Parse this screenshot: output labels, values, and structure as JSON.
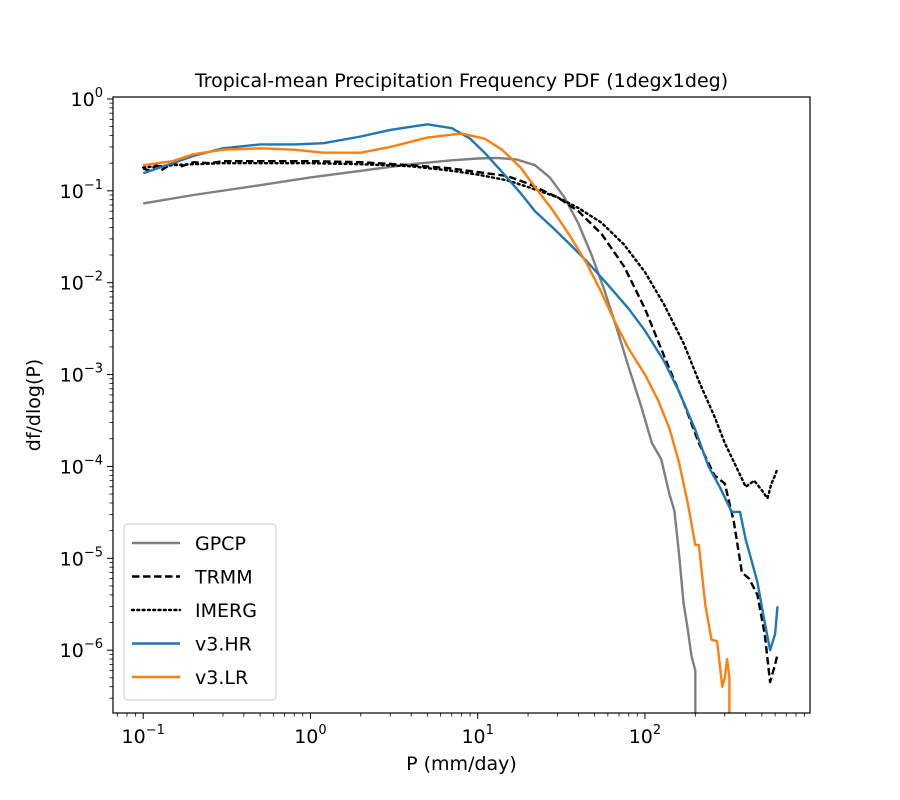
{
  "chart_data": {
    "type": "line",
    "title": "Tropical-mean Precipitation Frequency PDF (1degx1deg)",
    "xlabel": "P (mm/day)",
    "ylabel": "df/dlog(P)",
    "xscale": "log",
    "yscale": "log",
    "xlim": [
      0.066,
      970
    ],
    "ylim": [
      2.07e-07,
      1.05
    ],
    "grid": false,
    "legend_position": "bottom-left",
    "x_ticks": [
      {
        "base": "10",
        "exp": "−1",
        "value": 0.1
      },
      {
        "base": "10",
        "exp": "0",
        "value": 1
      },
      {
        "base": "10",
        "exp": "1",
        "value": 10
      },
      {
        "base": "10",
        "exp": "2",
        "value": 100
      }
    ],
    "y_ticks": [
      {
        "base": "10",
        "exp": "0",
        "value": 1
      },
      {
        "base": "10",
        "exp": "−1",
        "value": 0.1
      },
      {
        "base": "10",
        "exp": "−2",
        "value": 0.01
      },
      {
        "base": "10",
        "exp": "−3",
        "value": 0.001
      },
      {
        "base": "10",
        "exp": "−4",
        "value": 0.0001
      },
      {
        "base": "10",
        "exp": "−5",
        "value": 1e-05
      },
      {
        "base": "10",
        "exp": "−6",
        "value": 1e-06
      }
    ],
    "series": [
      {
        "name": "GPCP",
        "color": "#7f7f7f",
        "style": "solid",
        "x": [
          0.1,
          0.2,
          0.5,
          1,
          2,
          4,
          7,
          10,
          13,
          17,
          22,
          27,
          33,
          40,
          48,
          57,
          67,
          80,
          95,
          110,
          125,
          140,
          150,
          160,
          170,
          180,
          190,
          200,
          200
        ],
        "y": [
          0.073,
          0.09,
          0.115,
          0.14,
          0.165,
          0.195,
          0.215,
          0.225,
          0.228,
          0.22,
          0.19,
          0.14,
          0.085,
          0.044,
          0.02,
          0.0085,
          0.0034,
          0.0012,
          0.00045,
          0.00018,
          0.00012,
          5e-05,
          3.3e-05,
          1.1e-05,
          3.3e-06,
          1.7e-06,
          8.5e-07,
          6e-07,
          2.07e-07
        ]
      },
      {
        "name": "TRMM",
        "color": "#000000",
        "style": "dashed",
        "x": [
          0.1,
          0.11,
          0.12,
          0.13,
          0.15,
          0.17,
          0.2,
          0.25,
          0.3,
          0.5,
          1,
          2,
          4,
          7,
          10,
          15,
          20,
          30,
          40,
          55,
          75,
          100,
          130,
          170,
          210,
          260,
          300,
          340,
          380,
          420,
          470,
          520,
          560,
          600,
          620
        ],
        "y": [
          0.175,
          0.165,
          0.19,
          0.17,
          0.2,
          0.185,
          0.205,
          0.2,
          0.21,
          0.21,
          0.21,
          0.205,
          0.19,
          0.175,
          0.16,
          0.145,
          0.12,
          0.085,
          0.06,
          0.034,
          0.015,
          0.0052,
          0.0016,
          0.0005,
          0.00018,
          8e-05,
          6.5e-05,
          2.5e-05,
          7e-06,
          6e-06,
          4e-06,
          1.5e-06,
          4.5e-07,
          7e-07,
          9e-07
        ]
      },
      {
        "name": "IMERG",
        "color": "#000000",
        "style": "dotted",
        "x": [
          0.1,
          0.15,
          0.2,
          0.3,
          0.5,
          1,
          2,
          4,
          7,
          10,
          15,
          20,
          30,
          40,
          55,
          75,
          100,
          130,
          170,
          210,
          260,
          300,
          350,
          400,
          450,
          500,
          540,
          570,
          600,
          620
        ],
        "y": [
          0.18,
          0.19,
          0.195,
          0.2,
          0.2,
          0.2,
          0.195,
          0.185,
          0.165,
          0.15,
          0.13,
          0.11,
          0.085,
          0.065,
          0.045,
          0.026,
          0.013,
          0.0058,
          0.0022,
          0.00085,
          0.00035,
          0.00018,
          0.0001,
          6e-05,
          7e-05,
          5.5e-05,
          4.5e-05,
          6.5e-05,
          8e-05,
          9.5e-05
        ]
      },
      {
        "name": "v3.HR",
        "color": "#1f77b4",
        "style": "solid",
        "x": [
          0.1,
          0.15,
          0.2,
          0.3,
          0.5,
          0.8,
          1.2,
          2,
          3,
          5,
          7,
          9,
          11,
          14,
          18,
          22,
          28,
          35,
          45,
          60,
          80,
          100,
          130,
          160,
          200,
          240,
          280,
          330,
          370,
          400,
          430,
          470,
          520,
          560,
          600,
          620
        ],
        "y": [
          0.155,
          0.2,
          0.24,
          0.29,
          0.32,
          0.32,
          0.33,
          0.39,
          0.46,
          0.53,
          0.48,
          0.37,
          0.26,
          0.16,
          0.095,
          0.06,
          0.04,
          0.027,
          0.017,
          0.0095,
          0.0052,
          0.003,
          0.0014,
          0.00065,
          0.00025,
          0.0001,
          6e-05,
          3.2e-05,
          3.2e-05,
          1.6e-05,
          1e-05,
          5.5e-06,
          2e-06,
          1e-06,
          1.5e-06,
          3e-06
        ]
      },
      {
        "name": "v3.LR",
        "color": "#ff7f0e",
        "style": "solid",
        "x": [
          0.1,
          0.15,
          0.2,
          0.3,
          0.5,
          0.8,
          1.2,
          2,
          3,
          5,
          8,
          11,
          14,
          18,
          22,
          28,
          35,
          45,
          55,
          65,
          80,
          100,
          120,
          140,
          160,
          180,
          200,
          210,
          230,
          250,
          270,
          290,
          300,
          310,
          320,
          320
        ],
        "y": [
          0.19,
          0.21,
          0.25,
          0.28,
          0.29,
          0.28,
          0.26,
          0.26,
          0.3,
          0.38,
          0.42,
          0.37,
          0.28,
          0.18,
          0.11,
          0.062,
          0.034,
          0.016,
          0.0078,
          0.004,
          0.0019,
          0.001,
          0.00052,
          0.00026,
          0.00011,
          4e-05,
          1.4e-05,
          1.4e-05,
          3e-06,
          1.3e-06,
          1.25e-06,
          4e-07,
          5e-07,
          8e-07,
          5e-07,
          2.07e-07
        ]
      }
    ]
  }
}
